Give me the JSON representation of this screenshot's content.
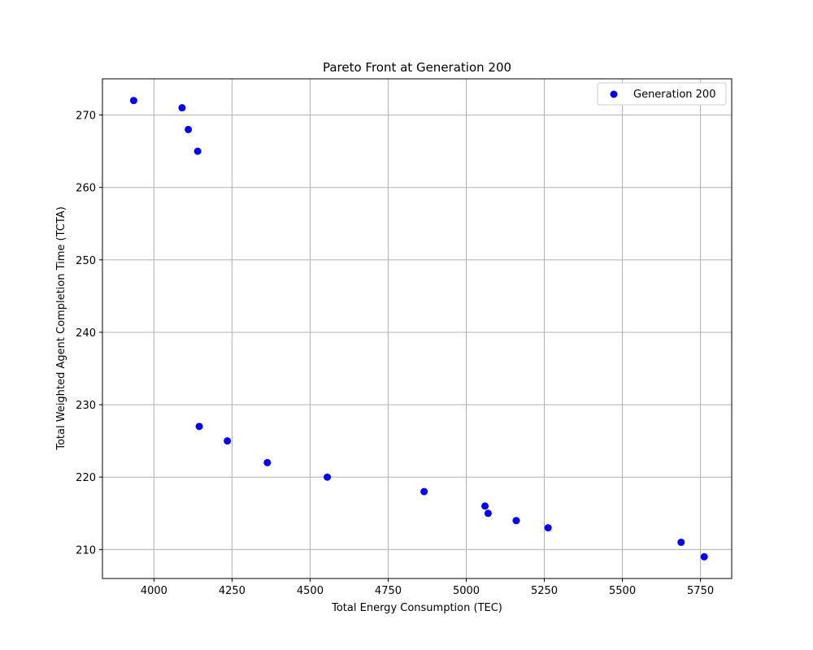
{
  "chart_data": {
    "type": "scatter",
    "title": "Pareto Front at Generation 200",
    "xlabel": "Total Energy Consumption (TEC)",
    "ylabel": "Total Weighted Agent Completion Time (TCTA)",
    "xlim": [
      3835,
      5850
    ],
    "ylim": [
      206,
      275
    ],
    "xticks": [
      4000,
      4250,
      4500,
      4750,
      5000,
      5250,
      5500,
      5750
    ],
    "yticks": [
      210,
      220,
      230,
      240,
      250,
      260,
      270
    ],
    "grid": true,
    "legend_position": "top-right",
    "series": [
      {
        "name": "Generation 200",
        "color": "#0000ff",
        "points": [
          {
            "x": 3935,
            "y": 272
          },
          {
            "x": 4090,
            "y": 271
          },
          {
            "x": 4110,
            "y": 268
          },
          {
            "x": 4140,
            "y": 265
          },
          {
            "x": 4145,
            "y": 227
          },
          {
            "x": 4235,
            "y": 225
          },
          {
            "x": 4363,
            "y": 222
          },
          {
            "x": 4555,
            "y": 220
          },
          {
            "x": 4865,
            "y": 218
          },
          {
            "x": 5060,
            "y": 216
          },
          {
            "x": 5070,
            "y": 215
          },
          {
            "x": 5160,
            "y": 214
          },
          {
            "x": 5262,
            "y": 213
          },
          {
            "x": 5688,
            "y": 211
          },
          {
            "x": 5762,
            "y": 209
          }
        ]
      }
    ]
  }
}
